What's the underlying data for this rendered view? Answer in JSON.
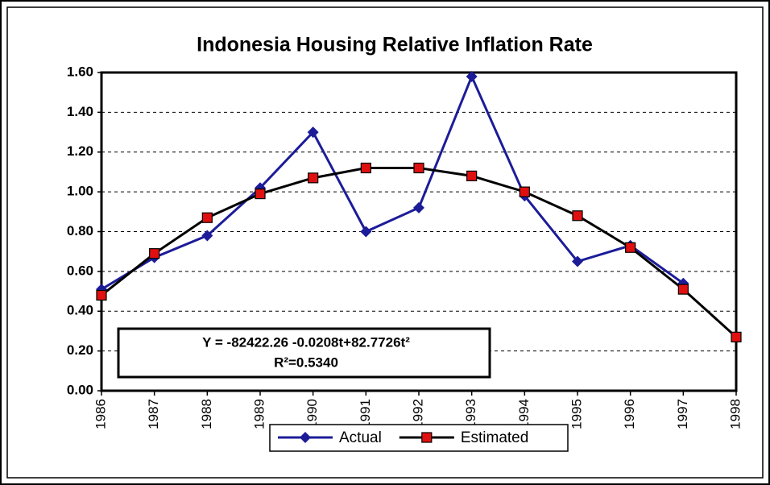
{
  "chart_data": {
    "type": "line",
    "title": "Indonesia Housing Relative Inflation Rate",
    "categories": [
      "1986",
      "1987",
      "1988",
      "1989",
      "1990",
      "1991",
      "1992",
      "1993",
      "1994",
      "1995",
      "1996",
      "1997",
      "1998"
    ],
    "series": [
      {
        "name": "Actual",
        "color": "#1c1c99",
        "marker": "diamond",
        "values": [
          0.51,
          0.67,
          0.78,
          1.02,
          1.3,
          0.8,
          0.92,
          1.58,
          0.98,
          0.65,
          0.73,
          0.54,
          null
        ]
      },
      {
        "name": "Estimated",
        "color": "#000000",
        "marker_color": "#e01010",
        "marker": "square",
        "values": [
          0.48,
          0.69,
          0.87,
          0.99,
          1.07,
          1.12,
          1.12,
          1.08,
          1.0,
          0.88,
          0.72,
          0.51,
          0.27
        ]
      }
    ],
    "annotation": [
      "Y = -82422.26 -0.0208t+82.7726t²",
      "R²=0.5340"
    ],
    "ylim": [
      0,
      1.6
    ],
    "yticks": [
      {
        "value": 0,
        "label": "0.00"
      },
      {
        "value": 0.2,
        "label": "0.20"
      },
      {
        "value": 0.4,
        "label": "0.40"
      },
      {
        "value": 0.6,
        "label": "0.60"
      },
      {
        "value": 0.8,
        "label": "0.80"
      },
      {
        "value": 1.0,
        "label": "1.00"
      },
      {
        "value": 1.2,
        "label": "1.20"
      },
      {
        "value": 1.4,
        "label": "1.40"
      },
      {
        "value": 1.6,
        "label": "1.60"
      }
    ],
    "grid": true,
    "legend": "bottom"
  }
}
